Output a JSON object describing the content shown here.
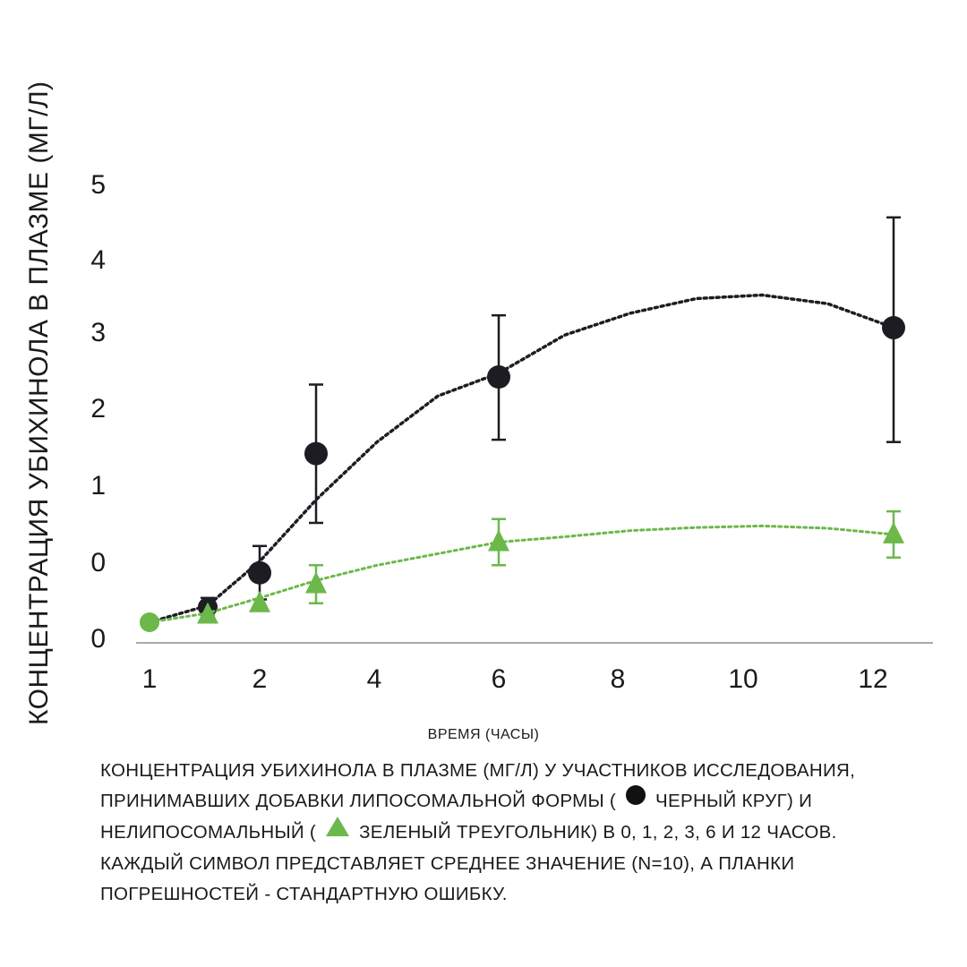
{
  "chart_data": {
    "type": "scatter",
    "ylabel": "КОНЦЕНТРАЦИЯ УБИХИНОЛА В ПЛАЗМЕ  (МГ/Л)",
    "xlabel": "ВРЕМЯ (ЧАСЫ)",
    "x_ticks": [
      "1",
      "2",
      "4",
      "6",
      "8",
      "10",
      "12"
    ],
    "y_ticks": [
      "0",
      "0",
      "1",
      "2",
      "3",
      "4",
      "5"
    ],
    "series": [
      {
        "color": "#1c1c22",
        "marker": "circle",
        "points": [
          {
            "x": "0",
            "y": 0.2,
            "err": 0
          },
          {
            "x": "1",
            "y": 0.4,
            "err": 0.12
          },
          {
            "x": "2",
            "y": 0.85,
            "err": 0.35
          },
          {
            "x": "3",
            "y": 2.4,
            "err": 0.9
          },
          {
            "x": "6",
            "y": 3.4,
            "err": 0.82
          },
          {
            "x": "12",
            "y": 4.05,
            "err": 1.5
          }
        ],
        "trend": [
          [
            0,
            0.2
          ],
          [
            1,
            0.42
          ],
          [
            2,
            1.0
          ],
          [
            3,
            1.8
          ],
          [
            4,
            2.55
          ],
          [
            5,
            3.15
          ],
          [
            6,
            3.45
          ],
          [
            7,
            3.95
          ],
          [
            8,
            4.25
          ],
          [
            9,
            4.45
          ],
          [
            10,
            4.5
          ],
          [
            11,
            4.38
          ],
          [
            12,
            4.05
          ]
        ]
      },
      {
        "color": "#6cb84a",
        "marker": "triangle",
        "points": [
          {
            "x": "0",
            "y": 0.2,
            "err": 0
          },
          {
            "x": "1",
            "y": 0.3,
            "err": 0
          },
          {
            "x": "2",
            "y": 0.45,
            "err": 0
          },
          {
            "x": "3",
            "y": 0.7,
            "err": 0.25
          },
          {
            "x": "6",
            "y": 1.25,
            "err": 0.3
          },
          {
            "x": "12",
            "y": 1.35,
            "err": 0.3
          }
        ],
        "trend": [
          [
            0,
            0.2
          ],
          [
            1,
            0.32
          ],
          [
            2,
            0.52
          ],
          [
            3,
            0.75
          ],
          [
            4,
            0.95
          ],
          [
            5,
            1.1
          ],
          [
            6,
            1.25
          ],
          [
            7,
            1.32
          ],
          [
            8,
            1.4
          ],
          [
            9,
            1.44
          ],
          [
            10,
            1.46
          ],
          [
            11,
            1.43
          ],
          [
            12,
            1.35
          ]
        ]
      }
    ]
  },
  "caption": {
    "line1": "КОНЦЕНТРАЦИЯ УБИХИНОЛА  В ПЛАЗМЕ (МГ/Л) У УЧАСТНИКОВ ИССЛЕДОВАНИЯ,",
    "line2a": "ПРИНИМАВШИХ ДОБАВКИ ЛИПОСОМАЛЬНОЙ ФОРМЫ (",
    "line2b": "ЧЕРНЫЙ КРУГ) И",
    "line3a": "НЕЛИПОСОМАЛЬНЫЙ (",
    "line3b": "ЗЕЛЕНЫЙ ТРЕУГОЛЬНИК) В 0, 1, 2, 3, 6 И 12 ЧАСОВ.",
    "line4": "КАЖДЫЙ СИМВОЛ ПРЕДСТАВЛЯЕТ СРЕДНЕЕ ЗНАЧЕНИЕ (N=10), А ПЛАНКИ",
    "line5": "ПОГРЕШНОСТЕЙ - СТАНДАРТНУЮ ОШИБКУ."
  }
}
